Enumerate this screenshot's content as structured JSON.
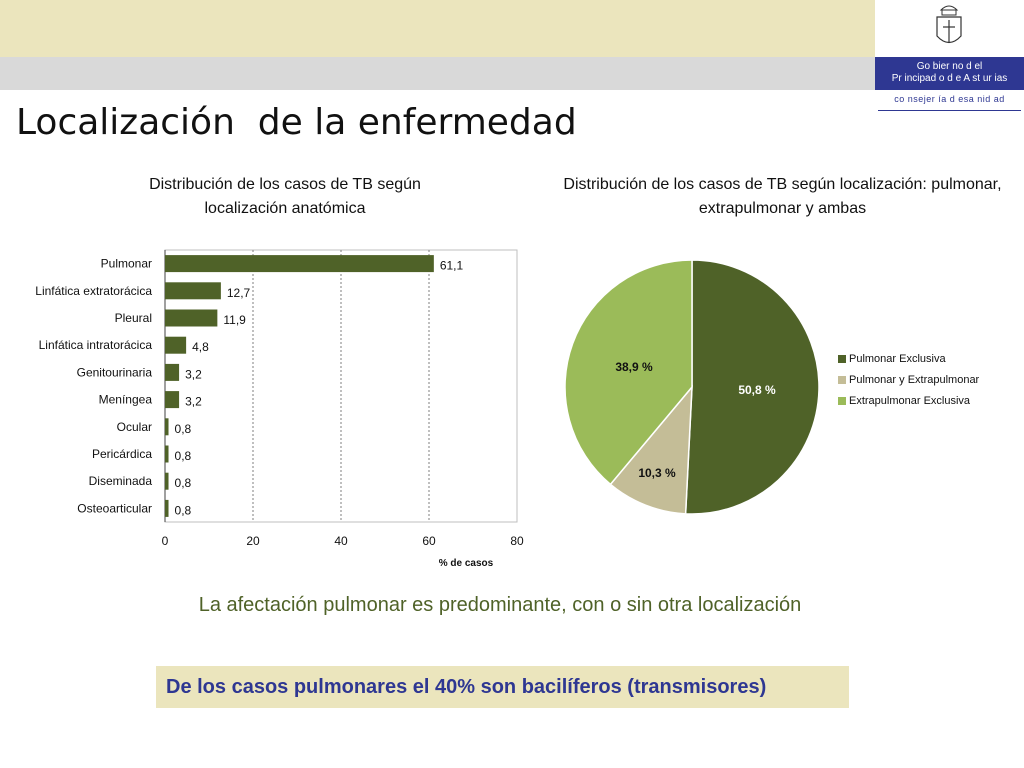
{
  "header": {
    "gov_line1": "Go bier no d el",
    "gov_line2": "Pr incipad o d e A st ur ias",
    "consejeria": "co nsejer ía d esa nid ad"
  },
  "page_title": "Localización  de la enfermedad",
  "chart_data": [
    {
      "type": "bar",
      "orientation": "horizontal",
      "title": "Distribución de los casos de TB según localización anatómica",
      "categories": [
        "Pulmonar",
        "Linfática extratorácica",
        "Pleural",
        "Linfática intratorácica",
        "Genitourinaria",
        "Meníngea",
        "Ocular",
        "Pericárdica",
        "Diseminada",
        "Osteoarticular"
      ],
      "values": [
        61.1,
        12.7,
        11.9,
        4.8,
        3.2,
        3.2,
        0.8,
        0.8,
        0.8,
        0.8
      ],
      "value_labels": [
        "61,1",
        "12,7",
        "11,9",
        "4,8",
        "3,2",
        "3,2",
        "0,8",
        "0,8",
        "0,8",
        "0,8"
      ],
      "xlabel": "% de casos",
      "xlim": [
        0,
        80
      ],
      "xticks": [
        0,
        20,
        40,
        60,
        80
      ],
      "grid": true,
      "color": "#4f6228"
    },
    {
      "type": "pie",
      "title": "Distribución de los casos de TB según localización: pulmonar, extrapulmonar y ambas",
      "series": [
        {
          "name": "Pulmonar Exclusiva",
          "value": 50.8,
          "label": "50,8 %",
          "color": "#4f6228"
        },
        {
          "name": "Pulmonar y Extrapulmonar",
          "value": 10.3,
          "label": "10,3 %",
          "color": "#c4bd97"
        },
        {
          "name": "Extrapulmonar Exclusiva",
          "value": 38.9,
          "label": "38,9 %",
          "color": "#9bbb59"
        }
      ],
      "legend_position": "right"
    }
  ],
  "conclusion": "La afectación pulmonar es predominante, con o sin otra localización",
  "highlight": "De los casos pulmonares el 40% son bacilíferos (transmisores)"
}
